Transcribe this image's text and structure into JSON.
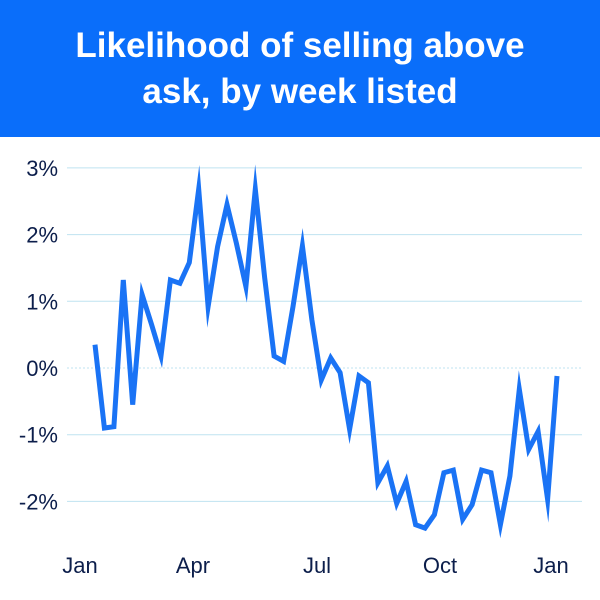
{
  "title": "Likelihood of selling above ask, by week listed",
  "colors": {
    "header_bg": "#0A6EFA",
    "title_text": "#FFFFFF",
    "line": "#1A73F5",
    "grid": "#BFE3F0",
    "tick_text": "#0C1E4B"
  },
  "chart_data": {
    "type": "line",
    "title": "Likelihood of selling above ask, by week listed",
    "xlabel": "",
    "ylabel": "",
    "x_ticks": [
      "Jan",
      "Apr",
      "Jul",
      "Oct",
      "Jan"
    ],
    "y_ticks": [
      "3%",
      "2%",
      "1%",
      "0%",
      "-1%",
      "-2%"
    ],
    "ylim": [
      -2.6,
      3.1
    ],
    "y_unit": "%",
    "grid": "horizontal",
    "zero_line": "dotted",
    "series": [
      {
        "values": [
          0.35,
          -0.9,
          -0.88,
          1.32,
          -0.55,
          1.1,
          0.65,
          0.18,
          1.32,
          1.27,
          1.58,
          2.68,
          0.92,
          1.82,
          2.45,
          1.87,
          1.22,
          2.68,
          1.35,
          0.18,
          0.1,
          0.92,
          1.83,
          0.72,
          -0.18,
          0.15,
          -0.07,
          -0.92,
          -0.12,
          -0.22,
          -1.72,
          -1.47,
          -2.03,
          -1.7,
          -2.35,
          -2.4,
          -2.2,
          -1.57,
          -1.53,
          -2.27,
          -2.05,
          -1.53,
          -1.57,
          -2.35,
          -1.62,
          -0.32,
          -1.22,
          -0.95,
          -1.97,
          -0.12
        ]
      }
    ]
  }
}
